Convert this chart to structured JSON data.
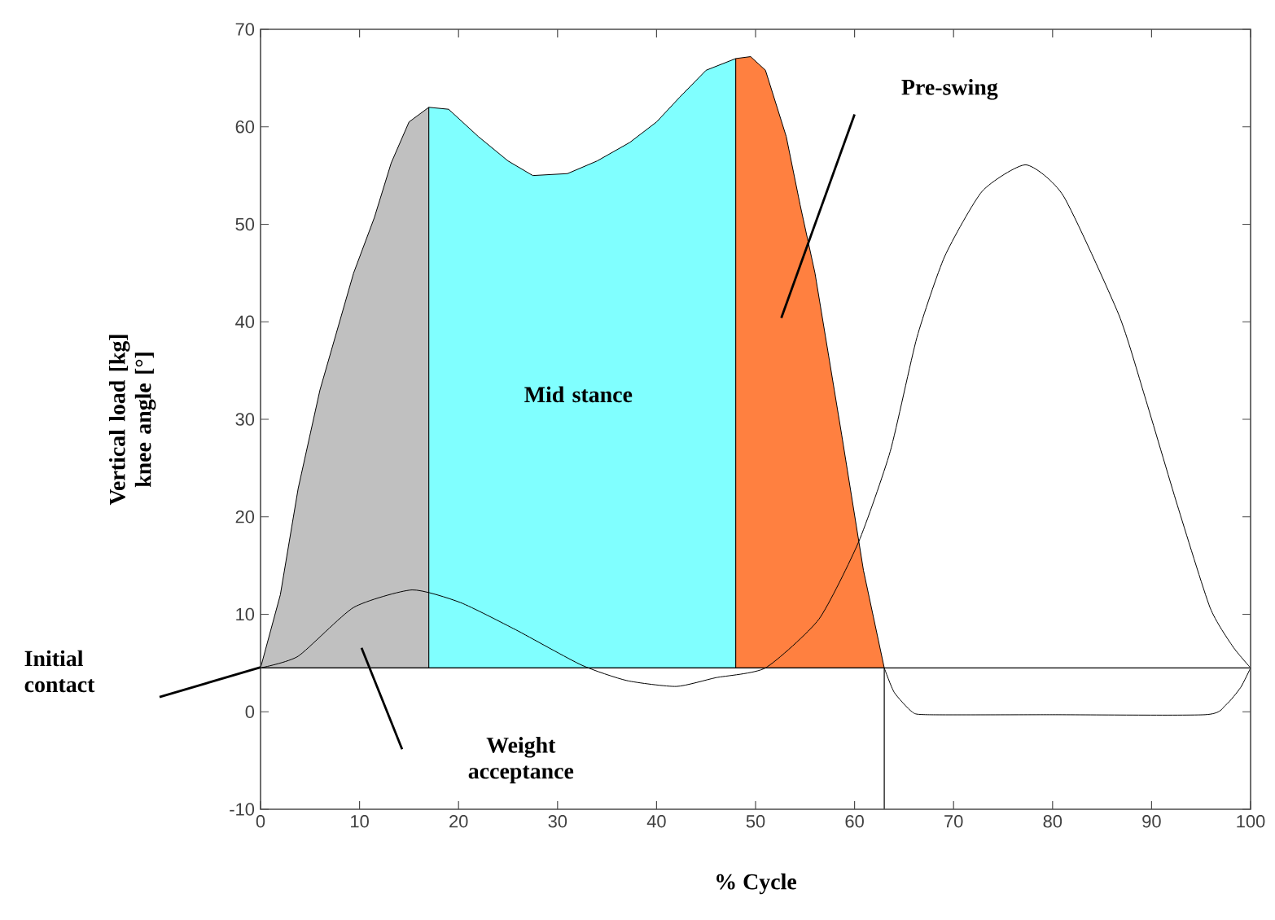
{
  "chart_data": {
    "type": "line",
    "xlabel": "% Cycle",
    "ylabel": "Vertical load [kg] knee angle [°]",
    "xlim": [
      0,
      100
    ],
    "ylim": [
      -10,
      70
    ],
    "xticks": [
      0,
      10,
      20,
      30,
      40,
      50,
      60,
      70,
      80,
      90,
      100
    ],
    "yticks": [
      -10,
      0,
      10,
      20,
      30,
      40,
      50,
      60,
      70
    ],
    "series": [
      {
        "type": "area",
        "color": "#c0c0c0",
        "x": [
          0,
          2,
          3.8,
          6,
          9.4,
          11.5,
          13.2,
          15,
          17
        ],
        "values": [
          4.5,
          12,
          22.9,
          33,
          45,
          50.7,
          56.3,
          60.5,
          62
        ]
      },
      {
        "type": "area",
        "color": "#80ffff",
        "x": [
          17,
          19,
          22,
          25,
          27.5,
          31,
          34,
          37.3,
          40,
          42.3,
          45,
          48
        ],
        "values": [
          62,
          61.8,
          59,
          56.5,
          55,
          55.2,
          56.5,
          58.4,
          60.5,
          63,
          65.8,
          67
        ]
      },
      {
        "type": "area",
        "color": "#ff8040",
        "x": [
          48,
          49.5,
          51,
          53.1,
          54.5,
          56,
          58.7,
          60.9,
          63
        ],
        "values": [
          67,
          67.2,
          65.8,
          59,
          52,
          45,
          28.4,
          14.5,
          4.5
        ]
      },
      {
        "color": "#000000",
        "x": [
          63,
          64,
          65.8,
          67.4,
          80,
          95.4,
          97.5,
          99,
          100
        ],
        "values": [
          4.5,
          2,
          0,
          -0.3,
          -0.3,
          -0.3,
          0.7,
          2.5,
          4.5
        ]
      },
      {
        "color": "#000000",
        "x": [
          0,
          3.8,
          9.4,
          15.3,
          20.2,
          25.8,
          32.4,
          37,
          42,
          46,
          51,
          56.4,
          60.4,
          63.6,
          66.3,
          69.1,
          72.9,
          77.3,
          81.1,
          86.7,
          89.3,
          92.6,
          95.9,
          98.2,
          100
        ],
        "values": [
          4.5,
          5.7,
          10.7,
          12.5,
          11.2,
          8.4,
          4.8,
          3.2,
          2.6,
          3.5,
          4.5,
          9.5,
          17.4,
          26.7,
          38.4,
          46.7,
          53.4,
          56.1,
          52.9,
          40.7,
          32.4,
          21.2,
          10.7,
          6.7,
          4.5
        ]
      }
    ],
    "ref_lines": [
      {
        "axis": "y",
        "value": 4.5,
        "color": "#000000"
      },
      {
        "axis": "x",
        "value": 63,
        "color": "#000000"
      }
    ],
    "annotations": [
      "Initial contact",
      "Weight acceptance",
      "Mid stance",
      "Pre-swing"
    ]
  }
}
